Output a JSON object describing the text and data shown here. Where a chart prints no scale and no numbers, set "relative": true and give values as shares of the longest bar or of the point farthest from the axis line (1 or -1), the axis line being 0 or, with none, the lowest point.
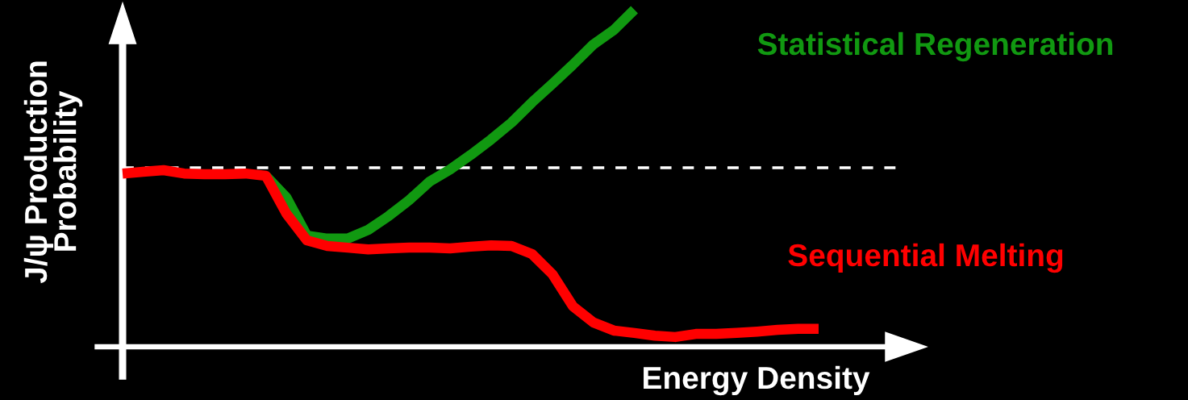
{
  "chart_data": {
    "type": "line",
    "relative": true,
    "xlabel": "Energy Density",
    "ylabel": "J/ψ Production\nProbability",
    "categories": [
      null,
      null,
      null,
      null,
      null,
      null,
      null,
      null,
      null,
      null,
      null,
      null,
      null,
      null,
      null,
      null,
      null,
      null,
      null,
      null,
      null,
      null,
      null,
      null,
      null,
      null,
      null,
      null,
      null,
      null,
      null,
      null,
      null,
      null,
      null
    ],
    "series": [
      {
        "name": "Statistical Regeneration",
        "color": "#119911",
        "values": [
          null,
          null,
          null,
          null,
          null,
          null,
          null,
          0.507,
          0.443,
          0.33,
          0.321,
          0.321,
          0.347,
          0.388,
          0.435,
          0.49,
          0.526,
          0.569,
          0.615,
          0.665,
          0.725,
          0.78,
          0.837,
          0.897,
          0.94,
          1,
          null,
          null,
          null,
          null,
          null,
          null,
          null,
          null,
          null
        ]
      },
      {
        "name": "Sequential Melting",
        "color": "#ff0000",
        "values": [
          0.514,
          0.519,
          0.524,
          0.514,
          0.512,
          0.512,
          0.514,
          0.507,
          0.395,
          0.316,
          0.299,
          0.294,
          0.289,
          0.292,
          0.294,
          0.294,
          0.292,
          0.297,
          0.301,
          0.299,
          0.275,
          0.215,
          0.12,
          0.072,
          0.048,
          0.041,
          0.033,
          0.029,
          0.038,
          0.038,
          0.041,
          0.045,
          0.05,
          0.053,
          0.053
        ]
      }
    ],
    "ref_lines": [
      {
        "axis": "y",
        "value": 0.531,
        "color": "#ffffff",
        "line_style": "dashed"
      }
    ],
    "legend": false
  }
}
